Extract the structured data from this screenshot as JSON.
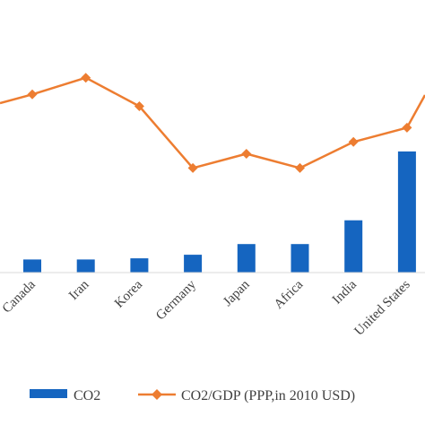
{
  "chart_data": {
    "type": "bar",
    "categories": [
      "Canada",
      "Iran",
      "Korea",
      "Germany",
      "Japan",
      "Africa",
      "India",
      "United States"
    ],
    "series": [
      {
        "name": "CO2",
        "type": "bar",
        "values": [
          0.55,
          0.55,
          0.6,
          0.75,
          1.2,
          1.2,
          2.2,
          5.1
        ]
      },
      {
        "name": "CO2/GDP (PPP,in 2010 USD)",
        "type": "line",
        "values": [
          7.5,
          8.2,
          7.0,
          4.4,
          5.0,
          4.4,
          5.5,
          6.1
        ]
      }
    ],
    "ylim": [
      0,
      10.5
    ],
    "grid": false,
    "legend": "bottom",
    "colors": {
      "bar": "#1565C0",
      "line": "#ED7D31",
      "axis": "#D9D9D9"
    }
  }
}
